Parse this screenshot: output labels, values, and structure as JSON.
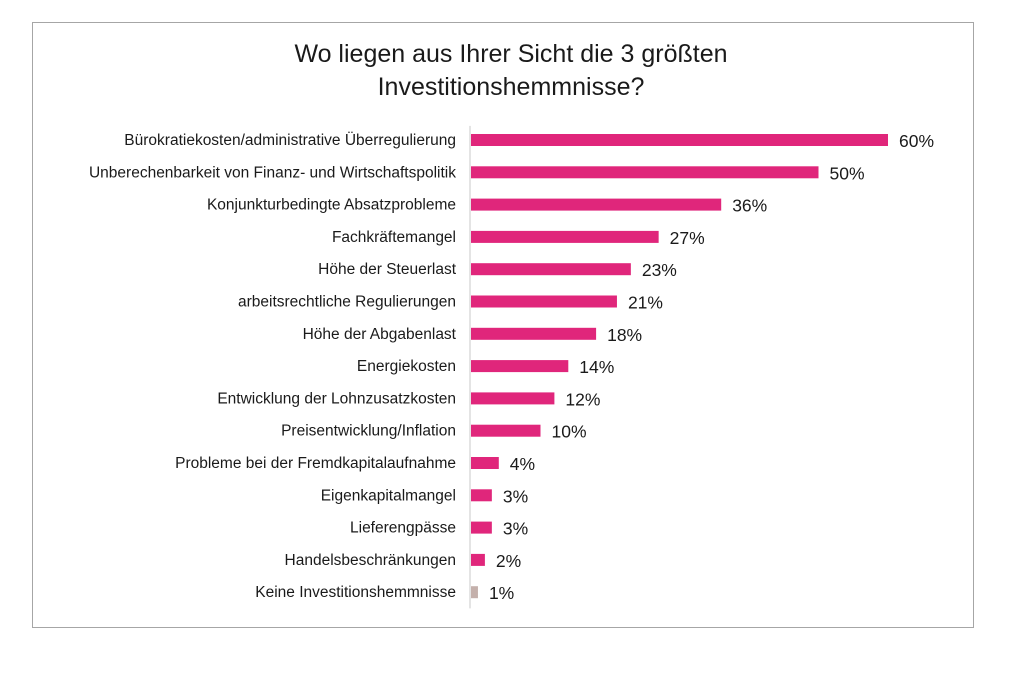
{
  "chart_data": {
    "type": "bar",
    "orientation": "horizontal",
    "title": "Wo liegen aus Ihrer Sicht die 3 größten Investitionshemmnisse?",
    "title_lines": [
      "Wo liegen aus Ihrer Sicht die 3 größten",
      "Investitionshemmnisse?"
    ],
    "categories": [
      "Bürokratiekosten/administrative Überregulierung",
      "Unberechenbarkeit von Finanz- und Wirtschaftspolitik",
      "Konjunkturbedingte Absatzprobleme",
      "Fachkräftemangel",
      "Höhe der Steuerlast",
      "arbeitsrechtliche Regulierungen",
      "Höhe der Abgabenlast",
      "Energiekosten",
      "Entwicklung der Lohnzusatzkosten",
      "Preisentwicklung/Inflation",
      "Probleme bei der Fremdkapitalaufnahme",
      "Eigenkapitalmangel",
      "Lieferengpässe",
      "Handelsbeschränkungen",
      "Keine Investitionshemmnisse"
    ],
    "values": [
      60,
      50,
      36,
      27,
      23,
      21,
      18,
      14,
      12,
      10,
      4,
      3,
      3,
      2,
      1
    ],
    "value_labels": [
      "60%",
      "50%",
      "36%",
      "27%",
      "23%",
      "21%",
      "18%",
      "14%",
      "12%",
      "10%",
      "4%",
      "3%",
      "3%",
      "2%",
      "1%"
    ],
    "unit": "%",
    "colors": {
      "bar": "#e0267b",
      "bar_none": "#c4b0ab",
      "axis": "#c8c8c8",
      "frame": "#a6a6a6",
      "text": "#1a1a1a"
    },
    "bar_colors": [
      "#e0267b",
      "#e0267b",
      "#e0267b",
      "#e0267b",
      "#e0267b",
      "#e0267b",
      "#e0267b",
      "#e0267b",
      "#e0267b",
      "#e0267b",
      "#e0267b",
      "#e0267b",
      "#e0267b",
      "#e0267b",
      "#c4b0ab"
    ],
    "grid": false,
    "legend": "none"
  }
}
